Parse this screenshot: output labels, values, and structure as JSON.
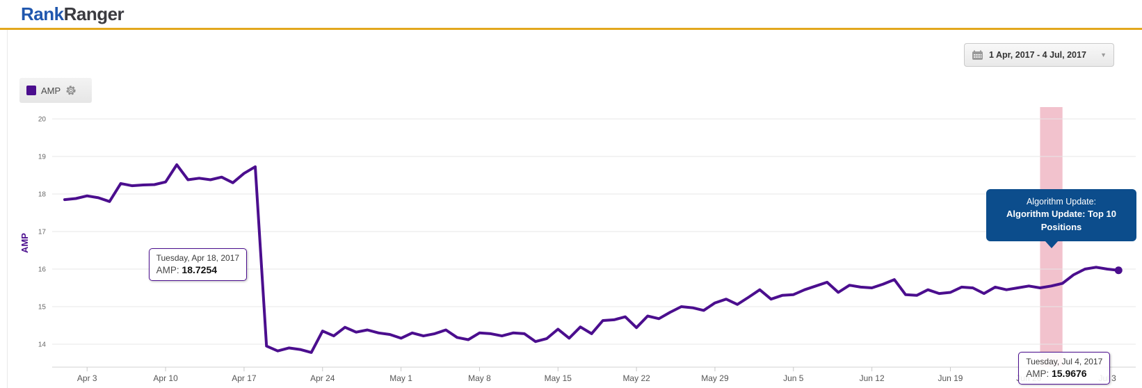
{
  "header": {
    "logo_part1": "Rank",
    "logo_part2": "Ranger"
  },
  "toolbar": {
    "date_range": "1 Apr, 2017 - 4 Jul, 2017"
  },
  "legend": {
    "label": "AMP"
  },
  "colors": {
    "series_purple": "#4b0e8e",
    "band_pink": "#f2c2cd",
    "callout_blue": "#0c4d8c",
    "brand_blue": "#2057ae",
    "brand_dark": "#3b3b40",
    "brand_gold": "#e2a71d"
  },
  "callout": {
    "line1": "Algorithm Update:",
    "line2": "Algorithm Update: Top 10 Positions"
  },
  "chart_data": {
    "type": "line",
    "title": "",
    "xlabel": "",
    "ylabel": "AMP",
    "ylim": [
      14,
      20
    ],
    "y_ticks": [
      20,
      19,
      18,
      17,
      16,
      15,
      14
    ],
    "grid": "horizontal",
    "legend_position": "top-left",
    "start_date": "1 Apr 2017",
    "end_date": "4 Jul 2017",
    "x_ticks": [
      {
        "label": "Apr 3",
        "day_index": 2
      },
      {
        "label": "Apr 10",
        "day_index": 9
      },
      {
        "label": "Apr 17",
        "day_index": 16
      },
      {
        "label": "Apr 24",
        "day_index": 23
      },
      {
        "label": "May 1",
        "day_index": 30
      },
      {
        "label": "May 8",
        "day_index": 37
      },
      {
        "label": "May 15",
        "day_index": 44
      },
      {
        "label": "May 22",
        "day_index": 51
      },
      {
        "label": "May 29",
        "day_index": 58
      },
      {
        "label": "Jun 5",
        "day_index": 65
      },
      {
        "label": "Jun 12",
        "day_index": 72
      },
      {
        "label": "Jun 19",
        "day_index": 79
      },
      {
        "label": "Jun 26",
        "day_index": 86
      },
      {
        "label": "Jul 3",
        "day_index": 93
      }
    ],
    "series": [
      {
        "name": "AMP",
        "color": "#4b0e8e",
        "values": [
          17.85,
          17.88,
          17.95,
          17.9,
          17.8,
          18.28,
          18.22,
          18.24,
          18.25,
          18.32,
          18.78,
          18.38,
          18.42,
          18.38,
          18.45,
          18.3,
          18.55,
          18.7254,
          13.95,
          13.82,
          13.9,
          13.86,
          13.78,
          14.35,
          14.22,
          14.45,
          14.32,
          14.38,
          14.3,
          14.26,
          14.16,
          14.3,
          14.22,
          14.28,
          14.38,
          14.18,
          14.12,
          14.3,
          14.28,
          14.22,
          14.3,
          14.28,
          14.07,
          14.15,
          14.4,
          14.16,
          14.46,
          14.28,
          14.63,
          14.65,
          14.73,
          14.44,
          14.75,
          14.68,
          14.85,
          15.0,
          14.97,
          14.9,
          15.1,
          15.2,
          15.06,
          15.25,
          15.45,
          15.2,
          15.3,
          15.32,
          15.45,
          15.55,
          15.65,
          15.38,
          15.57,
          15.52,
          15.5,
          15.6,
          15.72,
          15.32,
          15.3,
          15.45,
          15.35,
          15.38,
          15.52,
          15.5,
          15.35,
          15.52,
          15.45,
          15.5,
          15.55,
          15.5,
          15.55,
          15.62,
          15.85,
          16.0,
          16.05,
          16.0,
          15.9676
        ]
      }
    ],
    "highlight_band": {
      "label": "Algorithm Update: Top 10 Positions",
      "from_day_index": 87,
      "to_day_index": 89,
      "color": "#f2c2cd"
    },
    "end_marker_day_index": 94,
    "tooltips": [
      {
        "title": "Tuesday, Apr 18, 2017",
        "label_text": "AMP:",
        "value": "18.7254",
        "anchor_day_index": 17
      },
      {
        "title": "Tuesday, Jul 4, 2017",
        "label_text": "AMP:",
        "value": "15.9676",
        "anchor_day_index": 94
      }
    ]
  }
}
